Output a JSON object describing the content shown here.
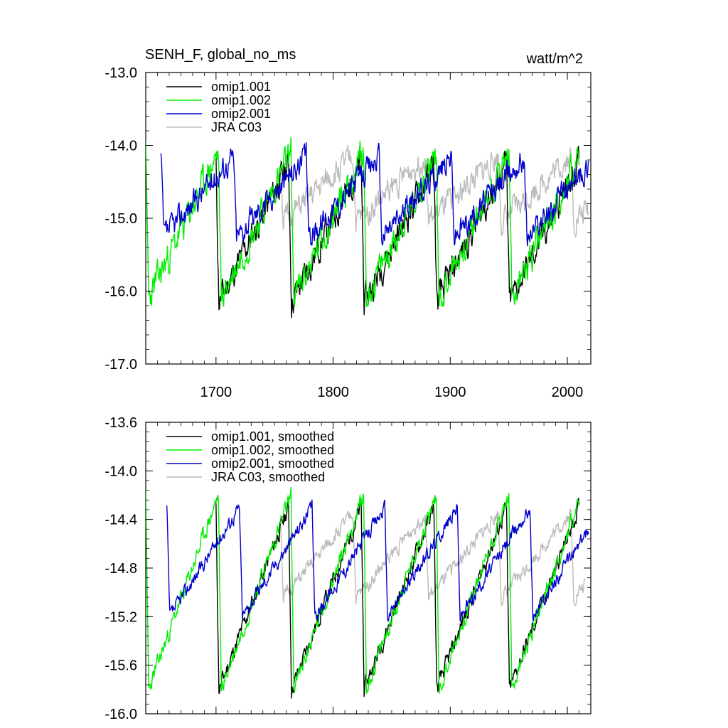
{
  "chart_data": [
    {
      "type": "line",
      "title": "SENH_F, global_no_ms",
      "units": "watt/m^2",
      "xlim": [
        1640,
        2020
      ],
      "ylim": [
        -17.0,
        -13.0
      ],
      "yticks": [
        -13.0,
        -14.0,
        -15.0,
        -16.0,
        -17.0
      ],
      "yticklabels": [
        "-13.0",
        "-14.0",
        "-15.0",
        "-16.0",
        "-17.0"
      ],
      "xticks": [
        1700,
        1800,
        1900,
        2000
      ],
      "xticklabels": [
        "1700",
        "1800",
        "1900",
        "2000"
      ],
      "legend": "top-left",
      "series": [
        {
          "name": "omip1.001",
          "color": "#000000",
          "x_start": 1700,
          "x_end": 2010,
          "base": -15.2,
          "amp": 0.95,
          "noise": 0.35,
          "period": 62,
          "offset": 1700,
          "seed": 11
        },
        {
          "name": "omip1.002",
          "color": "#00ee00",
          "x_start": 1640,
          "x_end": 2010,
          "base": -15.1,
          "amp": 1.0,
          "noise": 0.38,
          "period": 62,
          "offset": 1640,
          "seed": 23
        },
        {
          "name": "omip2.001",
          "color": "#0000cc",
          "x_start": 1653,
          "x_end": 2018,
          "base": -14.7,
          "amp": 0.55,
          "noise": 0.3,
          "period": 62,
          "offset": 1653,
          "seed": 37
        },
        {
          "name": "JRA C03",
          "color": "#bbbbbb",
          "x_start": 1755,
          "x_end": 2018,
          "base": -14.6,
          "amp": 0.45,
          "noise": 0.3,
          "period": 62,
          "offset": 1755,
          "seed": 51
        }
      ]
    },
    {
      "type": "line",
      "title": "",
      "xlim": [
        1640,
        2020
      ],
      "ylim": [
        -16.0,
        -13.6
      ],
      "yticks": [
        -13.6,
        -14.0,
        -14.4,
        -14.8,
        -15.2,
        -15.6,
        -16.0
      ],
      "yticklabels": [
        "-13.6",
        "-14.0",
        "-14.4",
        "-14.8",
        "-15.2",
        "-15.6",
        "-16.0"
      ],
      "xticks": [
        1700,
        1800,
        1900,
        2000
      ],
      "legend": "top-left",
      "series": [
        {
          "name": "omip1.001, smoothed",
          "color": "#000000",
          "x_start": 1700,
          "x_end": 2010,
          "base": -15.05,
          "amp": 0.75,
          "noise": 0.12,
          "period": 62,
          "offset": 1700,
          "seed": 11
        },
        {
          "name": "omip1.002, smoothed",
          "color": "#00ee00",
          "x_start": 1640,
          "x_end": 2010,
          "base": -15.0,
          "amp": 0.8,
          "noise": 0.12,
          "period": 62,
          "offset": 1640,
          "seed": 23
        },
        {
          "name": "omip2.001, smoothed",
          "color": "#0000cc",
          "x_start": 1658,
          "x_end": 2018,
          "base": -14.75,
          "amp": 0.45,
          "noise": 0.1,
          "period": 62,
          "offset": 1658,
          "seed": 37
        },
        {
          "name": "JRA C03, smoothed",
          "color": "#bbbbbb",
          "x_start": 1755,
          "x_end": 2015,
          "base": -14.7,
          "amp": 0.35,
          "noise": 0.1,
          "period": 62,
          "offset": 1755,
          "seed": 51
        }
      ]
    }
  ]
}
